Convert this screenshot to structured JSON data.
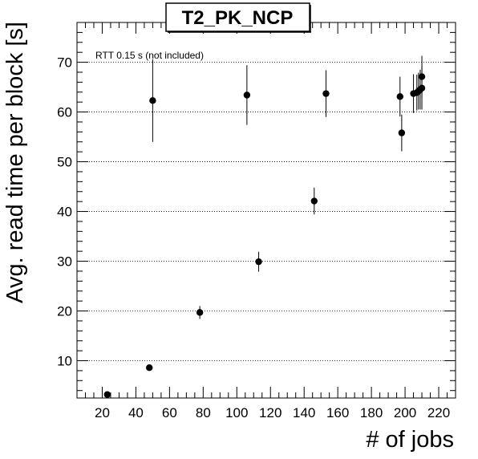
{
  "chart_data": {
    "type": "scatter",
    "title": "T2_PK_NCP",
    "xlabel": "# of jobs",
    "ylabel": "Avg. read time per block [s]",
    "annotation": "RTT 0.15 s (not included)",
    "xlim": [
      5,
      230
    ],
    "ylim": [
      2.5,
      78
    ],
    "x_major_ticks": [
      20,
      40,
      60,
      80,
      100,
      120,
      140,
      160,
      180,
      200,
      220
    ],
    "y_major_ticks": [
      10,
      20,
      30,
      40,
      50,
      60,
      70
    ],
    "grid_y": true,
    "grid_x": false,
    "points": [
      {
        "x": 23,
        "y": 3.2,
        "err": 0.0
      },
      {
        "x": 48,
        "y": 8.6,
        "err": 0.5
      },
      {
        "x": 50,
        "y": 62.3,
        "err": 8.3
      },
      {
        "x": 78,
        "y": 19.7,
        "err": 1.3
      },
      {
        "x": 106,
        "y": 63.4,
        "err": 6.0
      },
      {
        "x": 113,
        "y": 29.9,
        "err": 2.0
      },
      {
        "x": 146,
        "y": 42.1,
        "err": 2.7
      },
      {
        "x": 153,
        "y": 63.7,
        "err": 4.7
      },
      {
        "x": 197,
        "y": 63.1,
        "err": 4.0
      },
      {
        "x": 198,
        "y": 55.8,
        "err": 3.7
      },
      {
        "x": 205,
        "y": 63.7,
        "err": 3.9
      },
      {
        "x": 207,
        "y": 63.9,
        "err": 3.6
      },
      {
        "x": 208,
        "y": 64.2,
        "err": 3.7
      },
      {
        "x": 209,
        "y": 64.5,
        "err": 4.0
      },
      {
        "x": 210,
        "y": 64.8,
        "err": 4.3
      },
      {
        "x": 210,
        "y": 67.1,
        "err": 4.2
      }
    ]
  }
}
